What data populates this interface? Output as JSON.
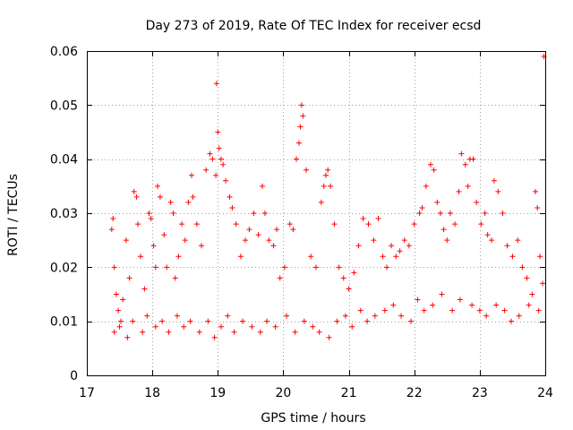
{
  "chart_data": {
    "type": "scatter",
    "title": "Day 273 of 2019, Rate Of TEC Index for receiver ecsd",
    "xlabel": "GPS time / hours",
    "ylabel": "ROTI / TECUs",
    "xlim": [
      17,
      24
    ],
    "ylim": [
      0,
      0.06
    ],
    "x_ticks": [
      17,
      18,
      19,
      20,
      21,
      22,
      23,
      24
    ],
    "x_tick_labels": [
      "17",
      "18",
      "19",
      "20",
      "21",
      "22",
      "23",
      "24"
    ],
    "y_ticks": [
      0,
      0.01,
      0.02,
      0.03,
      0.04,
      0.05,
      0.06
    ],
    "y_tick_labels": [
      "0",
      "0.01",
      "0.02",
      "0.03",
      "0.04",
      "0.05",
      "0.06"
    ],
    "grid": true,
    "marker": "+",
    "color": "#ff0000",
    "series": [
      {
        "name": "ROTI",
        "x": [
          17.38,
          17.4,
          17.42,
          17.45,
          17.48,
          17.52,
          17.55,
          17.6,
          17.65,
          17.72,
          17.76,
          17.78,
          17.82,
          17.88,
          17.95,
          17.98,
          18.02,
          18.05,
          18.08,
          18.12,
          18.18,
          18.22,
          18.28,
          18.32,
          18.35,
          18.4,
          18.45,
          18.5,
          18.55,
          18.6,
          18.62,
          18.68,
          18.75,
          18.82,
          18.88,
          18.92,
          18.97,
          18.98,
          19.0,
          19.02,
          19.05,
          19.08,
          19.12,
          19.18,
          19.22,
          19.28,
          19.35,
          19.42,
          19.48,
          19.55,
          19.62,
          19.68,
          19.72,
          19.78,
          19.85,
          19.9,
          19.95,
          20.02,
          20.1,
          20.15,
          20.2,
          20.24,
          20.26,
          20.28,
          20.3,
          20.35,
          20.42,
          20.5,
          20.58,
          20.62,
          20.65,
          20.68,
          20.72,
          20.78,
          20.85,
          20.92,
          21.0,
          21.08,
          21.15,
          21.22,
          21.3,
          21.38,
          21.45,
          21.52,
          21.58,
          21.65,
          21.72,
          21.78,
          21.85,
          21.92,
          22.0,
          22.08,
          22.12,
          22.18,
          22.25,
          22.3,
          22.35,
          22.4,
          22.45,
          22.5,
          22.55,
          22.62,
          22.68,
          22.72,
          22.78,
          22.82,
          22.85,
          22.9,
          22.95,
          23.02,
          23.08,
          23.12,
          23.18,
          23.22,
          23.28,
          23.35,
          23.42,
          23.5,
          23.58,
          23.65,
          23.72,
          23.8,
          23.85,
          23.88,
          23.92,
          23.96,
          23.98,
          17.42,
          17.5,
          17.62,
          17.7,
          17.85,
          17.92,
          18.05,
          18.15,
          18.25,
          18.38,
          18.48,
          18.58,
          18.72,
          18.85,
          18.95,
          19.05,
          19.15,
          19.25,
          19.38,
          19.52,
          19.65,
          19.75,
          19.88,
          20.05,
          20.18,
          20.32,
          20.45,
          20.55,
          20.7,
          20.82,
          20.95,
          21.05,
          21.18,
          21.28,
          21.4,
          21.55,
          21.68,
          21.8,
          21.95,
          22.05,
          22.15,
          22.28,
          22.42,
          22.58,
          22.7,
          22.88,
          23.0,
          23.1,
          23.25,
          23.38,
          23.48,
          23.6,
          23.75,
          23.9
        ],
        "values": [
          0.027,
          0.029,
          0.02,
          0.015,
          0.012,
          0.01,
          0.014,
          0.025,
          0.018,
          0.034,
          0.033,
          0.028,
          0.022,
          0.016,
          0.03,
          0.029,
          0.024,
          0.02,
          0.035,
          0.033,
          0.026,
          0.02,
          0.032,
          0.03,
          0.018,
          0.022,
          0.028,
          0.025,
          0.032,
          0.037,
          0.033,
          0.028,
          0.024,
          0.038,
          0.041,
          0.04,
          0.037,
          0.054,
          0.045,
          0.042,
          0.04,
          0.039,
          0.036,
          0.033,
          0.031,
          0.028,
          0.022,
          0.025,
          0.027,
          0.03,
          0.026,
          0.035,
          0.03,
          0.025,
          0.024,
          0.027,
          0.018,
          0.02,
          0.028,
          0.027,
          0.04,
          0.043,
          0.046,
          0.05,
          0.048,
          0.038,
          0.022,
          0.02,
          0.032,
          0.035,
          0.037,
          0.038,
          0.035,
          0.028,
          0.02,
          0.018,
          0.016,
          0.019,
          0.024,
          0.029,
          0.028,
          0.025,
          0.029,
          0.022,
          0.02,
          0.024,
          0.022,
          0.023,
          0.025,
          0.024,
          0.028,
          0.03,
          0.031,
          0.035,
          0.039,
          0.038,
          0.032,
          0.03,
          0.027,
          0.025,
          0.03,
          0.028,
          0.034,
          0.041,
          0.039,
          0.035,
          0.04,
          0.04,
          0.032,
          0.028,
          0.03,
          0.026,
          0.025,
          0.036,
          0.034,
          0.03,
          0.024,
          0.022,
          0.025,
          0.02,
          0.018,
          0.015,
          0.034,
          0.031,
          0.022,
          0.017,
          0.059,
          0.008,
          0.009,
          0.007,
          0.01,
          0.008,
          0.011,
          0.009,
          0.01,
          0.008,
          0.011,
          0.009,
          0.01,
          0.008,
          0.01,
          0.007,
          0.009,
          0.011,
          0.008,
          0.01,
          0.009,
          0.008,
          0.01,
          0.009,
          0.011,
          0.008,
          0.01,
          0.009,
          0.008,
          0.007,
          0.01,
          0.011,
          0.009,
          0.012,
          0.01,
          0.011,
          0.012,
          0.013,
          0.011,
          0.01,
          0.014,
          0.012,
          0.013,
          0.015,
          0.012,
          0.014,
          0.013,
          0.012,
          0.011,
          0.013,
          0.012,
          0.01,
          0.011,
          0.013,
          0.012
        ]
      }
    ]
  }
}
